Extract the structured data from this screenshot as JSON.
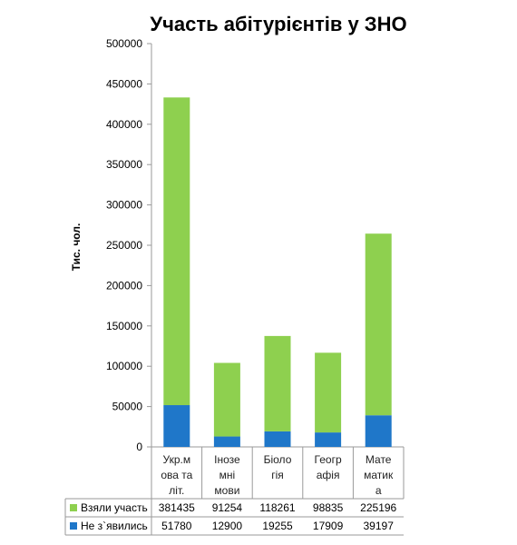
{
  "chart_data": {
    "type": "bar",
    "stacked": true,
    "title": "Участь абітурієнтів у ЗНО",
    "ylabel": "Тис. чол.",
    "xlabel": "",
    "ylim": [
      0,
      500000
    ],
    "yticks": [
      0,
      50000,
      100000,
      150000,
      200000,
      250000,
      300000,
      350000,
      400000,
      450000,
      500000
    ],
    "grid": false,
    "legend": "table-bottom",
    "categories": [
      [
        "Укр.м",
        "ова та",
        "літ."
      ],
      [
        "Інозе",
        "мні",
        "мови"
      ],
      [
        "Біоло",
        "гія"
      ],
      [
        "Геогр",
        "афія"
      ],
      [
        "Мате",
        "матик",
        "а"
      ]
    ],
    "series": [
      {
        "name": "Не з`явились",
        "color": "#1f77c9",
        "values": [
          51780,
          12900,
          19255,
          17909,
          39197
        ]
      },
      {
        "name": "Взяли участь",
        "color": "#8ed04f",
        "values": [
          381435,
          91254,
          118261,
          98835,
          225196
        ]
      }
    ],
    "table_rows": [
      {
        "name": "Взяли участь",
        "color": "#8ed04f",
        "values": [
          "381435",
          "91254",
          "118261",
          "98835",
          "225196"
        ]
      },
      {
        "name": "Не з`явились",
        "color": "#1f77c9",
        "values": [
          "51780",
          "12900",
          "19255",
          "17909",
          "39197"
        ]
      }
    ]
  }
}
